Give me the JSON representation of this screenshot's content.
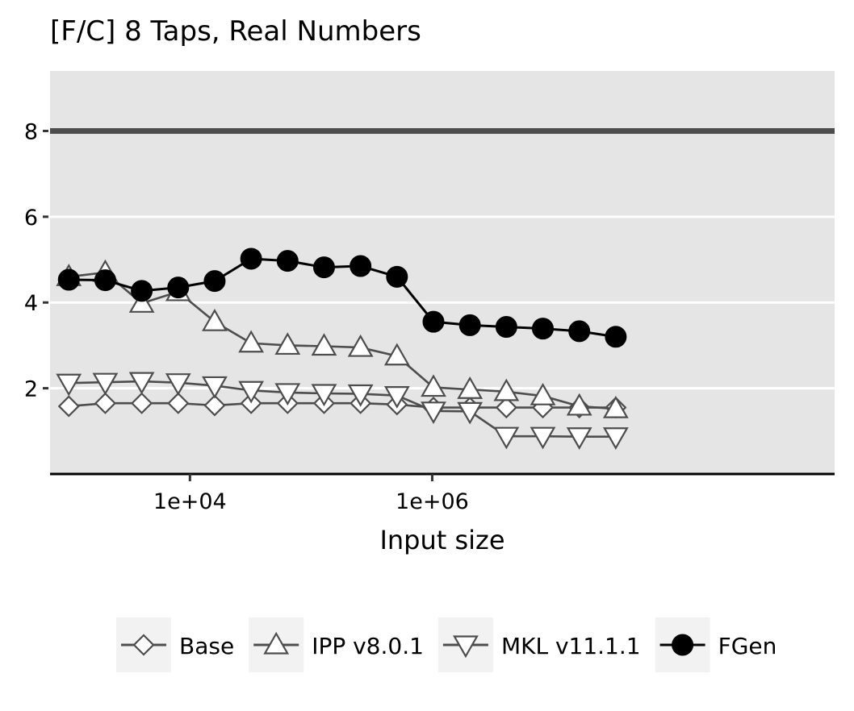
{
  "chart_data": {
    "type": "line",
    "title": "[F/C] 8 Taps, Real Numbers",
    "xlabel": "Input size",
    "ylabel": "",
    "x_scale": "log10",
    "xlim": [
      700,
      2100000000
    ],
    "ylim": [
      0,
      9.4
    ],
    "x_ticks": [
      10000,
      1000000
    ],
    "x_tick_labels": [
      "1e+04",
      "1e+06"
    ],
    "y_ticks": [
      2,
      4,
      6,
      8
    ],
    "y_tick_labels": [
      "2",
      "4",
      "6",
      "8"
    ],
    "reference_line": {
      "y": 8
    },
    "grid": true,
    "legend_position": "bottom",
    "x": [
      1000,
      2000,
      4000,
      8000,
      16000,
      32000,
      64000,
      128000,
      256000,
      512000,
      1024000,
      2048000,
      4096000,
      8192000,
      16384000,
      32768000
    ],
    "series": [
      {
        "name": "Base",
        "marker": "diamond-open",
        "color": "#4d4d4d",
        "values": [
          1.58,
          1.65,
          1.65,
          1.65,
          1.6,
          1.65,
          1.65,
          1.65,
          1.65,
          1.62,
          1.55,
          1.55,
          1.55,
          1.55,
          1.55,
          1.55
        ]
      },
      {
        "name": "IPP v8.0.1",
        "marker": "triangle-up-open",
        "color": "#4d4d4d",
        "values": [
          4.6,
          4.7,
          3.98,
          4.25,
          3.55,
          3.05,
          3.0,
          2.98,
          2.95,
          2.75,
          2.02,
          1.97,
          1.92,
          1.82,
          1.58,
          1.52
        ]
      },
      {
        "name": "MKL v11.1.1",
        "marker": "triangle-down-open",
        "color": "#4d4d4d",
        "values": [
          2.12,
          2.14,
          2.16,
          2.13,
          2.06,
          1.95,
          1.9,
          1.88,
          1.87,
          1.83,
          1.47,
          1.46,
          0.88,
          0.88,
          0.87,
          0.87
        ]
      },
      {
        "name": "FGen",
        "marker": "circle-filled",
        "color": "#000000",
        "values": [
          4.53,
          4.52,
          4.27,
          4.35,
          4.5,
          5.02,
          4.97,
          4.82,
          4.85,
          4.6,
          3.55,
          3.47,
          3.43,
          3.39,
          3.33,
          3.2
        ]
      }
    ]
  },
  "colors": {
    "panel_background": "#e5e5e5",
    "gridline": "#ffffff",
    "reference_line": "#4d4d4d",
    "series_line": "#4d4d4d",
    "fgen": "#000000",
    "legend_key_background": "#f2f2f2"
  }
}
